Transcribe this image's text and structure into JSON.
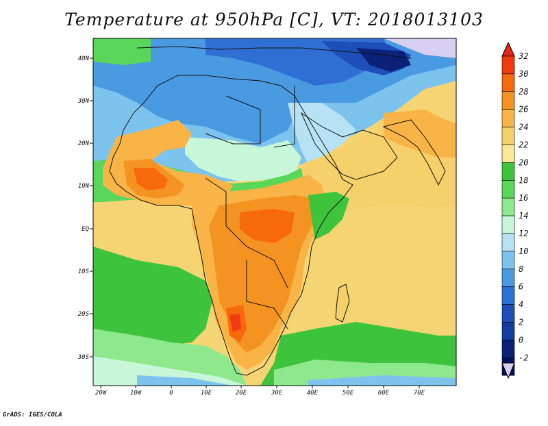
{
  "title": "Temperature at 950hPa [C], VT: 2018013103",
  "credit": "GrADS: IGES/COLA",
  "map": {
    "lat_labels": [
      "40N",
      "30N",
      "20N",
      "10N",
      "EQ",
      "10S",
      "20S",
      "30S"
    ],
    "lon_labels": [
      "20W",
      "10W",
      "0",
      "10E",
      "20E",
      "30E",
      "40E",
      "50E",
      "60E",
      "70E"
    ]
  },
  "colorbar": {
    "labels": [
      "32",
      "30",
      "28",
      "26",
      "24",
      "22",
      "20",
      "18",
      "16",
      "14",
      "12",
      "10",
      "8",
      "6",
      "4",
      "2",
      "0",
      "-2"
    ],
    "top_color": "#e8231a",
    "bottom_color": "#d8d0f0",
    "colors": [
      "#f03a10",
      "#f66a0c",
      "#f59322",
      "#f8b446",
      "#f6d06a",
      "#fbe79a",
      "#3ec43c",
      "#5ad65a",
      "#8ee88e",
      "#c8f6d8",
      "#b6e2f4",
      "#7cc4ee",
      "#4a9ae2",
      "#2f6fd4",
      "#1e4fb8",
      "#123ca0",
      "#0a2178",
      "#03125a"
    ]
  }
}
